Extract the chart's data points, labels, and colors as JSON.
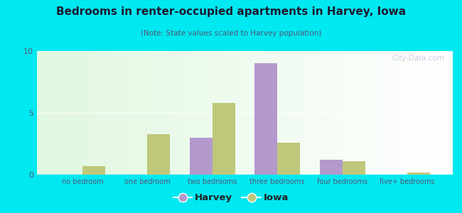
{
  "title": "Bedrooms in renter-occupied apartments in Harvey, Iowa",
  "subtitle": "(Note: State values scaled to Harvey population)",
  "categories": [
    "no bedroom",
    "one bedroom",
    "two bedrooms",
    "three bedrooms",
    "four bedrooms",
    "five+ bedrooms"
  ],
  "harvey_values": [
    0,
    0,
    3.0,
    9.0,
    1.2,
    0
  ],
  "iowa_values": [
    0.7,
    3.3,
    5.8,
    2.6,
    1.1,
    0.15
  ],
  "harvey_color": "#b399cc",
  "iowa_color": "#bfc87a",
  "background_outer": "#00e8f0",
  "ylim": [
    0,
    10
  ],
  "yticks": [
    0,
    5,
    10
  ],
  "bar_width": 0.35,
  "legend_harvey": "Harvey",
  "legend_iowa": "Iowa",
  "watermark": "City-Data.com",
  "title_color": "#1a1a2e",
  "subtitle_color": "#555577",
  "tick_color": "#555577"
}
